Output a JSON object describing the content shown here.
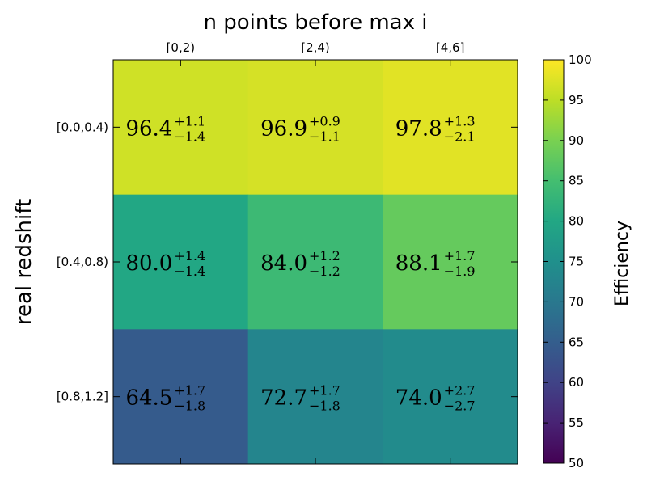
{
  "chart_data": {
    "type": "heatmap",
    "title": "n points before max i",
    "xlabel": "",
    "ylabel": "real redshift",
    "x_categories": [
      "[0,2)",
      "[2,4)",
      "[4,6]"
    ],
    "y_categories": [
      "[0.0,0.4)",
      "[0.4,0.8)",
      "[0.8,1.2]"
    ],
    "x_axis_position": "top",
    "grid": false,
    "colormap": "viridis",
    "colorbar": {
      "label": "Efficiency",
      "range": [
        50,
        100
      ],
      "ticks": [
        "50",
        "55",
        "60",
        "65",
        "70",
        "75",
        "80",
        "85",
        "90",
        "95",
        "100"
      ]
    },
    "cells": [
      [
        {
          "value": 96.4,
          "value_text": "96.4",
          "plus": "+1.1",
          "minus": "−1.4"
        },
        {
          "value": 96.9,
          "value_text": "96.9",
          "plus": "+0.9",
          "minus": "−1.1"
        },
        {
          "value": 97.8,
          "value_text": "97.8",
          "plus": "+1.3",
          "minus": "−2.1"
        }
      ],
      [
        {
          "value": 80.0,
          "value_text": "80.0",
          "plus": "+1.4",
          "minus": "−1.4"
        },
        {
          "value": 84.0,
          "value_text": "84.0",
          "plus": "+1.2",
          "minus": "−1.2"
        },
        {
          "value": 88.1,
          "value_text": "88.1",
          "plus": "+1.7",
          "minus": "−1.9"
        }
      ],
      [
        {
          "value": 64.5,
          "value_text": "64.5",
          "plus": "+1.7",
          "minus": "−1.8"
        },
        {
          "value": 72.7,
          "value_text": "72.7",
          "plus": "+1.7",
          "minus": "−1.8"
        },
        {
          "value": 74.0,
          "value_text": "74.0",
          "plus": "+2.7",
          "minus": "−2.7"
        }
      ]
    ]
  }
}
